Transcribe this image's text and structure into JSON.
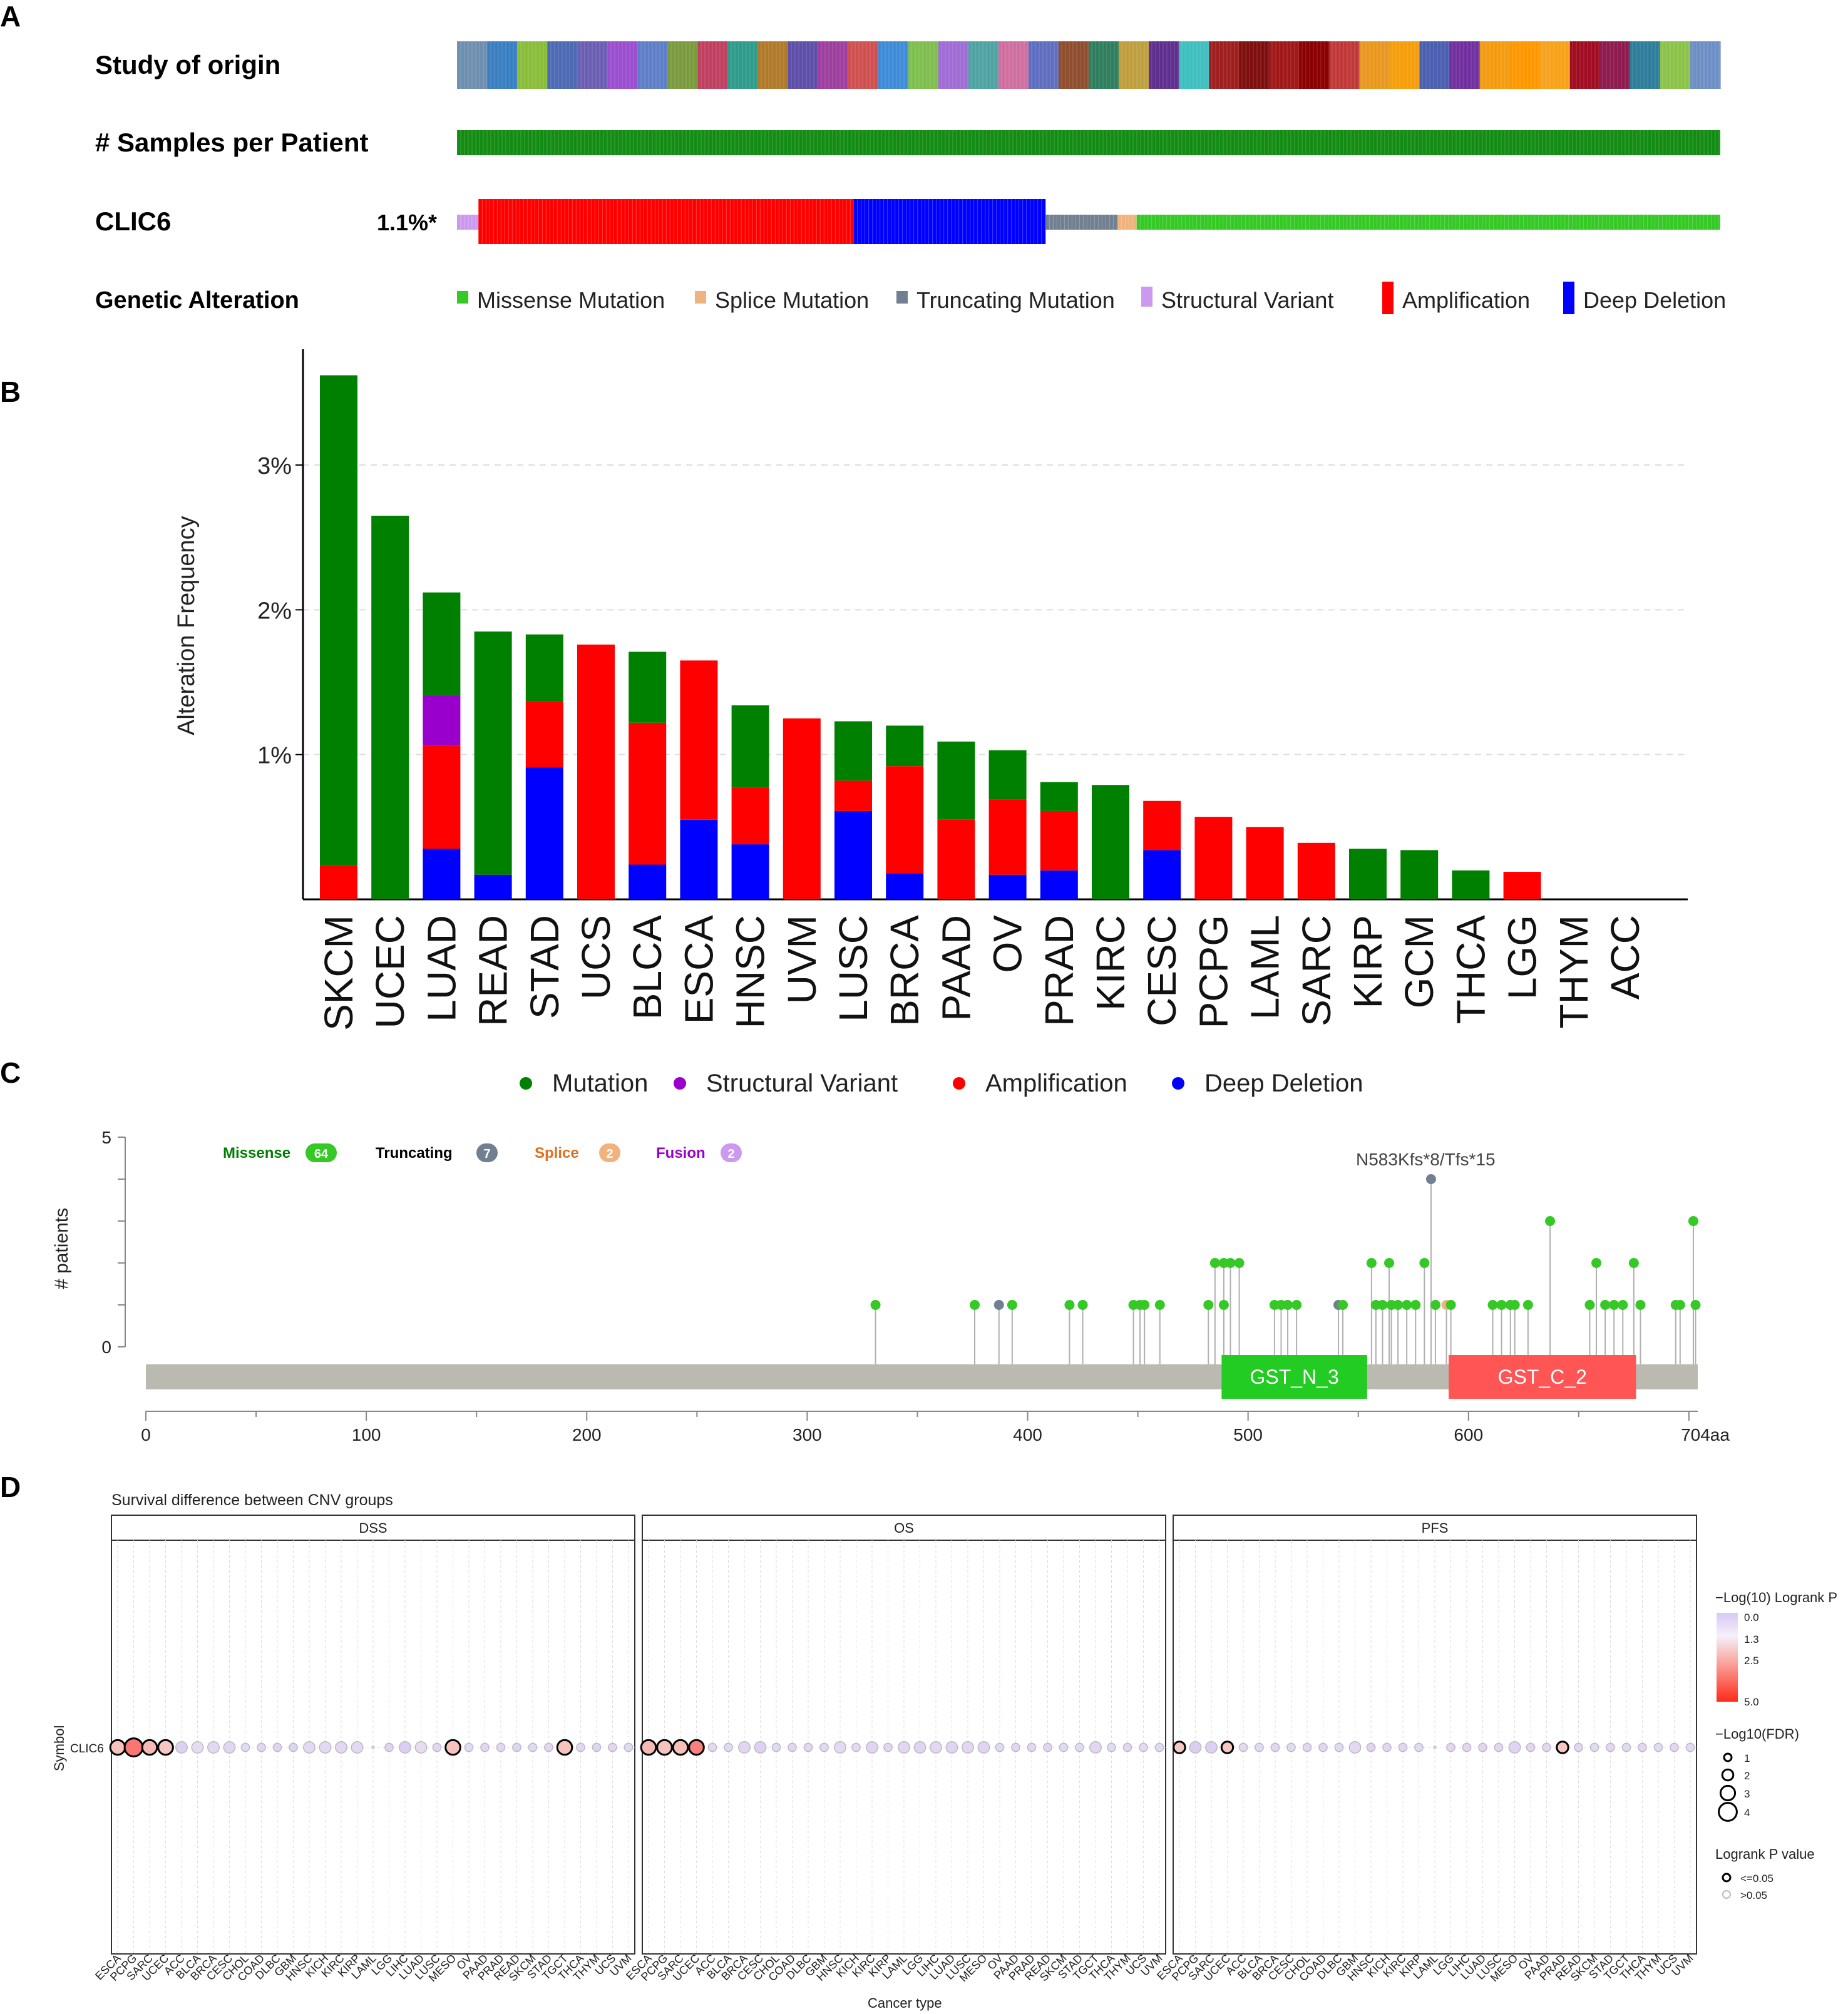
{
  "panels": {
    "A": {
      "letter": "A",
      "rows": [
        "Study of origin",
        "# Samples per Patient",
        "CLIC6"
      ],
      "gene_percent": "1.1%*",
      "legend_title": "Genetic Alteration",
      "legend": [
        {
          "label": "Missense Mutation",
          "color": "#34c924"
        },
        {
          "label": "Splice Mutation",
          "color": "#f0b37e"
        },
        {
          "label": "Truncating Mutation",
          "color": "#708090"
        },
        {
          "label": "Structural Variant",
          "color": "#cc99ee"
        },
        {
          "label": "Amplification",
          "color": "#ff0000"
        },
        {
          "label": "Deep Deletion",
          "color": "#0000ff"
        }
      ],
      "oncoprint_fractions": {
        "structural": 0.017,
        "amplification": 0.297,
        "deep_deletion": 0.152,
        "truncating": 0.057,
        "splice": 0.015,
        "missense": 0.462
      },
      "study_colors": [
        "#6f8fb0",
        "#3a7fc1",
        "#8abd3a",
        "#4d6bb3",
        "#6b5fb3",
        "#9a4fd0",
        "#5e7fc7",
        "#7a9a3e",
        "#c04060",
        "#2f9b8a",
        "#b07a2a",
        "#5e4fa8",
        "#9e3fa0",
        "#d05050",
        "#3f8bd8",
        "#7fbf4f",
        "#a06cd5",
        "#4fa3a3",
        "#cf6f9f",
        "#5f6fc0",
        "#8f4f2f",
        "#2f7f5f",
        "#bf9f3f",
        "#5f2f8f",
        "#3fbfbf",
        "#9f1f1f",
        "#7f0f0f",
        "#a01818",
        "#8b0000",
        "#c03838",
        "#e89820",
        "#f59e0b",
        "#4b5fb0",
        "#7030a0",
        "#f39c12",
        "#ff9800",
        "#f7a21b",
        "#a00c20",
        "#8e1b4e",
        "#2e7d9a",
        "#8bc34a",
        "#6d8fc4"
      ]
    },
    "B": {
      "letter": "B",
      "chart_data": {
        "type": "bar",
        "stacked": true,
        "ylabel": "Alteration Frequency",
        "ylim": [
          0,
          3.8
        ],
        "yticks": [
          "1%",
          "2%",
          "3%"
        ],
        "categories": [
          "SKCM",
          "UCEC",
          "LUAD",
          "READ",
          "STAD",
          "UCS",
          "BLCA",
          "ESCA",
          "HNSC",
          "UVM",
          "LUSC",
          "BRCA",
          "PAAD",
          "OV",
          "PRAD",
          "KIRC",
          "CESC",
          "PCPG",
          "LAML",
          "SARC",
          "KIRP",
          "GCM",
          "THCA",
          "LGG",
          "THYM",
          "ACC"
        ],
        "series": [
          {
            "name": "Deep Deletion",
            "color": "#0000ff",
            "values": [
              0,
              0,
              0.35,
              0.17,
              0.91,
              0,
              0.24,
              0.55,
              0.38,
              0,
              0.61,
              0.18,
              0,
              0.17,
              0.2,
              0,
              0.34,
              0,
              0,
              0,
              0,
              0,
              0,
              0,
              0,
              0
            ]
          },
          {
            "name": "Amplification",
            "color": "#ff0000",
            "values": [
              0.23,
              0,
              0.71,
              0,
              0.46,
              1.76,
              0.98,
              1.1,
              0.39,
              1.25,
              0.21,
              0.74,
              0.55,
              0.52,
              0.41,
              0,
              0.34,
              0.57,
              0.5,
              0.39,
              0,
              0,
              0,
              0.19,
              0,
              0
            ]
          },
          {
            "name": "Structural Variant",
            "color": "#9900cc",
            "values": [
              0,
              0,
              0.35,
              0,
              0,
              0,
              0,
              0,
              0,
              0,
              0,
              0,
              0,
              0,
              0,
              0,
              0,
              0,
              0,
              0,
              0,
              0,
              0,
              0,
              0,
              0
            ]
          },
          {
            "name": "Mutation",
            "color": "#008000",
            "values": [
              3.39,
              2.65,
              0.71,
              1.68,
              0.46,
              0,
              0.49,
              0,
              0.57,
              0,
              0.41,
              0.28,
              0.54,
              0.34,
              0.2,
              0.79,
              0,
              0,
              0,
              0,
              0.35,
              0.34,
              0.2,
              0,
              0,
              0
            ]
          }
        ],
        "legend": [
          {
            "label": "Mutation",
            "color": "#008000"
          },
          {
            "label": "Structural Variant",
            "color": "#9900cc"
          },
          {
            "label": "Amplification",
            "color": "#ff0000"
          },
          {
            "label": "Deep Deletion",
            "color": "#0000ff"
          }
        ]
      }
    },
    "C": {
      "letter": "C",
      "chart_data": {
        "type": "scatter",
        "subtype": "lollipop",
        "ylabel": "# patients",
        "yticks": [
          "0",
          "5"
        ],
        "xticks": [
          "0",
          "100",
          "200",
          "300",
          "400",
          "500",
          "600",
          "704aa"
        ],
        "protein_length": 704,
        "annotation": "N583Kfs*8/Tfs*15",
        "legend": [
          {
            "label": "Missense",
            "count": "64",
            "color": "#34c924",
            "text_color": "#008000"
          },
          {
            "label": "Truncating",
            "count": "7",
            "color": "#708090",
            "text_color": "#000000"
          },
          {
            "label": "Splice",
            "count": "2",
            "color": "#f0b37e",
            "text_color": "#e07020"
          },
          {
            "label": "Fusion",
            "count": "2",
            "color": "#cc99ee",
            "text_color": "#9900cc"
          }
        ],
        "domains": [
          {
            "name": "GST_N_3",
            "start": 488,
            "end": 554,
            "color": "#22cc22"
          },
          {
            "name": "GST_C_2",
            "start": 591,
            "end": 676,
            "color": "#ff5555"
          }
        ],
        "mutations": [
          {
            "pos": 331,
            "count": 1,
            "type": "Missense"
          },
          {
            "pos": 376,
            "count": 1,
            "type": "Missense"
          },
          {
            "pos": 387,
            "count": 1,
            "type": "Truncating"
          },
          {
            "pos": 393,
            "count": 1,
            "type": "Missense"
          },
          {
            "pos": 419,
            "count": 1,
            "type": "Missense"
          },
          {
            "pos": 425,
            "count": 1,
            "type": "Missense"
          },
          {
            "pos": 448,
            "count": 1,
            "type": "Missense"
          },
          {
            "pos": 451,
            "count": 1,
            "type": "Missense"
          },
          {
            "pos": 453,
            "count": 1,
            "type": "Missense"
          },
          {
            "pos": 460,
            "count": 1,
            "type": "Missense"
          },
          {
            "pos": 482,
            "count": 1,
            "type": "Missense"
          },
          {
            "pos": 485,
            "count": 2,
            "type": "Missense"
          },
          {
            "pos": 489,
            "count": 1,
            "type": "Missense"
          },
          {
            "pos": 489,
            "count": 2,
            "type": "Missense"
          },
          {
            "pos": 492,
            "count": 2,
            "type": "Missense"
          },
          {
            "pos": 496,
            "count": 2,
            "type": "Missense"
          },
          {
            "pos": 512,
            "count": 1,
            "type": "Missense"
          },
          {
            "pos": 515,
            "count": 1,
            "type": "Missense"
          },
          {
            "pos": 518,
            "count": 1,
            "type": "Missense"
          },
          {
            "pos": 522,
            "count": 1,
            "type": "Missense"
          },
          {
            "pos": 541,
            "count": 1,
            "type": "Truncating"
          },
          {
            "pos": 543,
            "count": 1,
            "type": "Missense"
          },
          {
            "pos": 556,
            "count": 2,
            "type": "Missense"
          },
          {
            "pos": 558,
            "count": 1,
            "type": "Missense"
          },
          {
            "pos": 561,
            "count": 1,
            "type": "Missense"
          },
          {
            "pos": 564,
            "count": 2,
            "type": "Missense"
          },
          {
            "pos": 565,
            "count": 1,
            "type": "Missense"
          },
          {
            "pos": 568,
            "count": 1,
            "type": "Missense"
          },
          {
            "pos": 572,
            "count": 1,
            "type": "Missense"
          },
          {
            "pos": 576,
            "count": 1,
            "type": "Missense"
          },
          {
            "pos": 580,
            "count": 2,
            "type": "Missense"
          },
          {
            "pos": 583,
            "count": 4,
            "type": "Truncating"
          },
          {
            "pos": 585,
            "count": 1,
            "type": "Missense"
          },
          {
            "pos": 590,
            "count": 1,
            "type": "Splice"
          },
          {
            "pos": 592,
            "count": 1,
            "type": "Missense"
          },
          {
            "pos": 611,
            "count": 1,
            "type": "Missense"
          },
          {
            "pos": 615,
            "count": 1,
            "type": "Missense"
          },
          {
            "pos": 619,
            "count": 1,
            "type": "Missense"
          },
          {
            "pos": 621,
            "count": 1,
            "type": "Missense"
          },
          {
            "pos": 627,
            "count": 1,
            "type": "Missense"
          },
          {
            "pos": 637,
            "count": 3,
            "type": "Missense"
          },
          {
            "pos": 655,
            "count": 1,
            "type": "Missense"
          },
          {
            "pos": 658,
            "count": 2,
            "type": "Missense"
          },
          {
            "pos": 662,
            "count": 1,
            "type": "Missense"
          },
          {
            "pos": 666,
            "count": 1,
            "type": "Missense"
          },
          {
            "pos": 670,
            "count": 1,
            "type": "Missense"
          },
          {
            "pos": 675,
            "count": 2,
            "type": "Missense"
          },
          {
            "pos": 678,
            "count": 1,
            "type": "Missense"
          },
          {
            "pos": 694,
            "count": 1,
            "type": "Missense"
          },
          {
            "pos": 696,
            "count": 1,
            "type": "Missense"
          },
          {
            "pos": 702,
            "count": 3,
            "type": "Missense"
          },
          {
            "pos": 703,
            "count": 1,
            "type": "Missense"
          }
        ]
      }
    },
    "D": {
      "letter": "D",
      "chart_data": {
        "type": "scatter",
        "subtype": "bubble",
        "title": "Survival difference between CNV groups",
        "xlabel": "Cancer type",
        "ylabel": "Symbol",
        "row_label": "CLIC6",
        "facets": [
          {
            "name": "DSS",
            "cancers": [
              "ESCA",
              "PCPG",
              "SARC",
              "UCEC",
              "ACC",
              "BLCA",
              "BRCA",
              "CESC",
              "CHOL",
              "COAD",
              "DLBC",
              "GBM",
              "HNSC",
              "KICH",
              "KIRC",
              "KIRP",
              "LAML",
              "LGG",
              "LIHC",
              "LUAD",
              "LUSC",
              "MESO",
              "OV",
              "PAAD",
              "PRAD",
              "READ",
              "SKCM",
              "STAD",
              "TGCT",
              "THCA",
              "THYM",
              "UCS",
              "UVM"
            ],
            "neglogp": [
              1.6,
              3.2,
              1.8,
              1.5,
              0.3,
              0.7,
              0.6,
              0.5,
              0.6,
              0.5,
              0.4,
              0.4,
              0.6,
              0.6,
              0.5,
              0.6,
              0,
              0.4,
              0.2,
              0.7,
              0.5,
              1.6,
              0.6,
              0.5,
              0.5,
              0.4,
              0.6,
              0.5,
              1.6,
              0.5,
              0.4,
              0.5,
              0.6
            ],
            "fdr": [
              3,
              4,
              3,
              3,
              2,
              2,
              2,
              2,
              1,
              1,
              1,
              1,
              2,
              2,
              2,
              2,
              0,
              1,
              2,
              2,
              1,
              3,
              1,
              1,
              1,
              1,
              1,
              1,
              3,
              1,
              1,
              1,
              1
            ]
          },
          {
            "name": "OS",
            "cancers": [
              "ESCA",
              "PCPG",
              "SARC",
              "UCEC",
              "ACC",
              "BLCA",
              "BRCA",
              "CESC",
              "CHOL",
              "COAD",
              "DLBC",
              "GBM",
              "HNSC",
              "KICH",
              "KIRC",
              "KIRP",
              "LAML",
              "LGG",
              "LIHC",
              "LUAD",
              "LUSC",
              "MESO",
              "OV",
              "PAAD",
              "PRAD",
              "READ",
              "SKCM",
              "STAD",
              "TGCT",
              "THCA",
              "THYM",
              "UCS",
              "UVM"
            ],
            "neglogp": [
              1.8,
              1.6,
              1.7,
              3.0,
              0.6,
              0.6,
              0.5,
              0.3,
              0.6,
              0.5,
              0.5,
              0.6,
              0.6,
              0.6,
              0.4,
              0.5,
              0.5,
              0.4,
              0.5,
              0.4,
              0.5,
              0.4,
              0.6,
              0.5,
              0.5,
              0.5,
              0.6,
              0.6,
              0.5,
              0.6,
              0.5,
              0.6,
              0.6
            ],
            "fdr": [
              3,
              3,
              3,
              3,
              1,
              1,
              2,
              2,
              1,
              1,
              1,
              1,
              2,
              1,
              2,
              1,
              2,
              2,
              2,
              2,
              2,
              2,
              1,
              1,
              1,
              1,
              1,
              1,
              2,
              1,
              1,
              1,
              1
            ]
          },
          {
            "name": "PFS",
            "cancers": [
              "ESCA",
              "PCPG",
              "SARC",
              "UCEC",
              "ACC",
              "BLCA",
              "BRCA",
              "CESC",
              "CHOL",
              "COAD",
              "DLBC",
              "GBM",
              "HNSC",
              "KICH",
              "KIRC",
              "KIRP",
              "LAML",
              "LGG",
              "LIHC",
              "LUAD",
              "LUSC",
              "MESO",
              "OV",
              "PAAD",
              "PRAD",
              "READ",
              "SKCM",
              "STAD",
              "TGCT",
              "THCA",
              "THYM",
              "UCS",
              "UVM"
            ],
            "neglogp": [
              1.5,
              0.2,
              0.3,
              1.5,
              0.6,
              0.6,
              0.5,
              0.6,
              0.5,
              0.5,
              0.6,
              0.6,
              0.4,
              0.5,
              0.5,
              0.6,
              0,
              0.5,
              0.5,
              0.5,
              0.5,
              0.4,
              0.5,
              0.5,
              1.5,
              0.5,
              0.6,
              0.5,
              0.6,
              0.5,
              0.6,
              0.5,
              0.6
            ],
            "fdr": [
              2,
              2,
              2,
              2,
              1,
              1,
              1,
              1,
              1,
              1,
              1,
              2,
              1,
              1,
              1,
              1,
              0,
              1,
              1,
              1,
              1,
              2,
              1,
              1,
              2,
              1,
              1,
              1,
              1,
              1,
              1,
              1,
              1
            ]
          }
        ],
        "legend_color_title": "−Log(10) Logrank P",
        "legend_color_ticks": [
          "0.0",
          "1.3",
          "2.5",
          "5.0"
        ],
        "legend_size_title": "−Log10(FDR)",
        "legend_size_ticks": [
          "1",
          "2",
          "3",
          "4"
        ],
        "legend_sig_title": "Logrank P value",
        "legend_sig_ticks": [
          "<=0.05",
          ">0.05"
        ]
      }
    }
  }
}
